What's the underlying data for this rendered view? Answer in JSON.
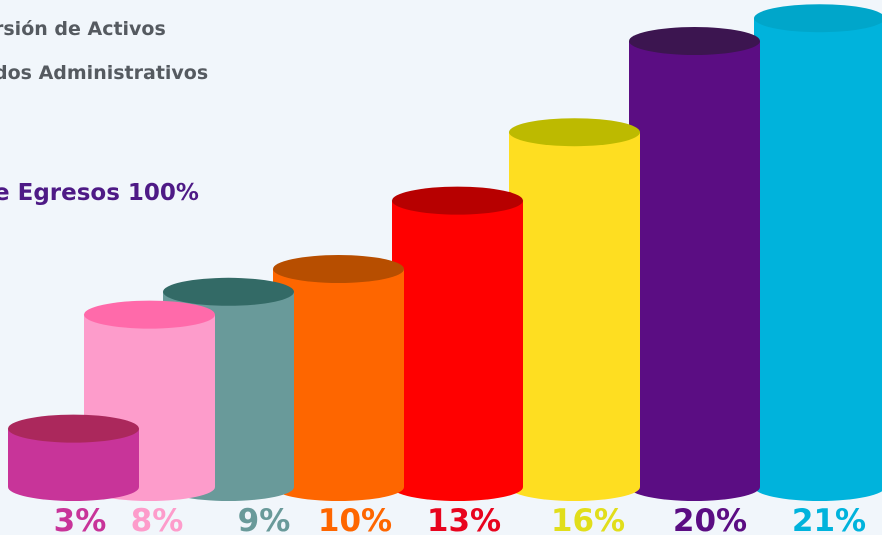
{
  "legend": {
    "line1": "rsión de Activos",
    "line2": "dos Administrativos"
  },
  "total_label": "e Egresos 100%",
  "chart_data": {
    "type": "bar",
    "style": "3d-cylinder",
    "categories": [
      "",
      "",
      "",
      "",
      "",
      "",
      "",
      ""
    ],
    "values": [
      3,
      8,
      9,
      10,
      13,
      16,
      20,
      21
    ],
    "labels": [
      "3%",
      "8%",
      "9%",
      "10%",
      "13%",
      "16%",
      "20%",
      "21%"
    ],
    "colors": {
      "body": [
        "#c83499",
        "#fd9ccb",
        "#699a9a",
        "#fe6600",
        "#ff0000",
        "#fede21",
        "#5b0d83",
        "#00b3dc"
      ],
      "top": [
        "#ab285c",
        "#ff6aaa",
        "#336a66",
        "#b74e00",
        "#b70000",
        "#bdba00",
        "#3c1550",
        "#00a6ca"
      ],
      "label": [
        "#c83499",
        "#fd9ccb",
        "#699a9a",
        "#fe6600",
        "#e8041e",
        "#e1de1b",
        "#5b0d83",
        "#00b3dc"
      ]
    },
    "title": "",
    "xlabel": "",
    "ylabel": "",
    "grid": false,
    "legend": "none"
  }
}
